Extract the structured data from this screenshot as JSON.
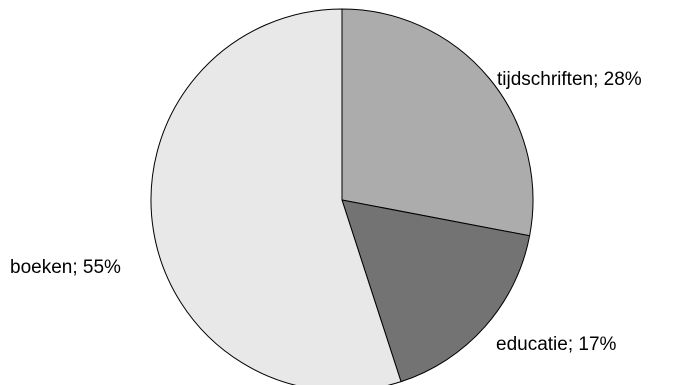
{
  "chart_data": {
    "type": "pie",
    "title": "",
    "start_angle": "12 o'clock",
    "direction": "clockwise",
    "slices": [
      {
        "label": "tijdschriften; 28%",
        "category": "tijdschriften",
        "value": 28,
        "color": "#acacac"
      },
      {
        "label": "educatie; 17%",
        "category": "educatie",
        "value": 17,
        "color": "#737373"
      },
      {
        "label": "boeken; 55%",
        "category": "boeken",
        "value": 55,
        "color": "#e8e8e8"
      }
    ],
    "stroke_color": "#000000"
  }
}
